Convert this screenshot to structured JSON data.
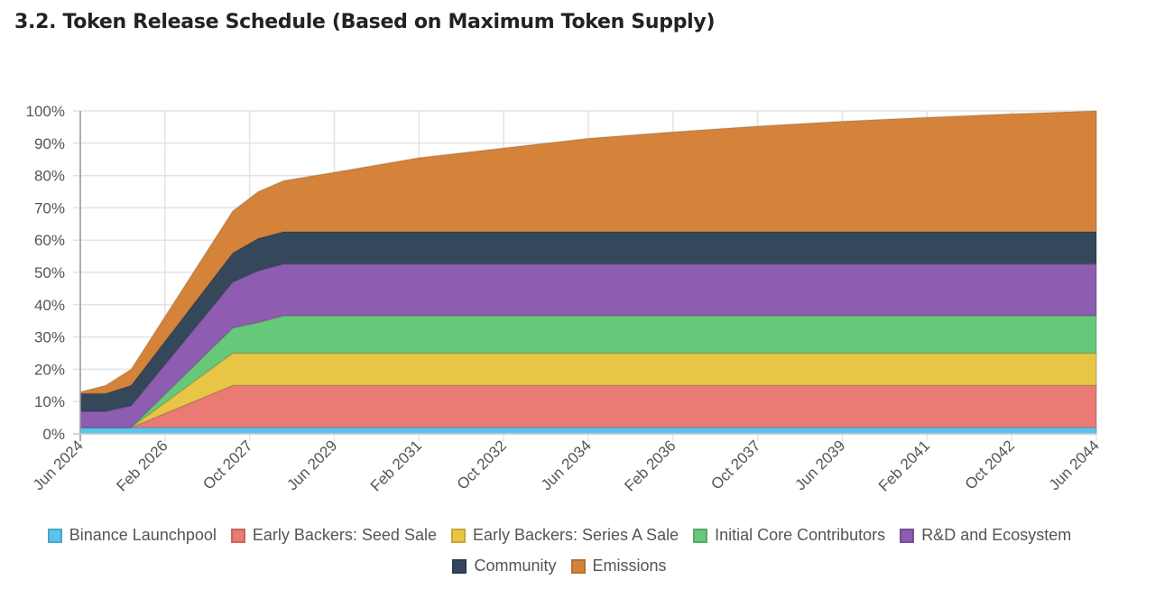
{
  "title": "3.2. Token Release Schedule (Based on Maximum Token Supply)",
  "chart_data": {
    "type": "area",
    "stacked": true,
    "ylim": [
      0,
      100
    ],
    "yticks": [
      "0%",
      "10%",
      "20%",
      "30%",
      "40%",
      "50%",
      "60%",
      "70%",
      "80%",
      "90%",
      "100%"
    ],
    "xticks": [
      "Jun 2024",
      "Feb 2026",
      "Oct 2027",
      "Jun 2029",
      "Feb 2031",
      "Oct 2032",
      "Jun 2034",
      "Feb 2036",
      "Oct 2037",
      "Jun 2039",
      "Feb 2041",
      "Oct 2042",
      "Jun 2044"
    ],
    "grid": true,
    "legend": "bottom",
    "x": [
      "2024-06",
      "2024-12",
      "2025-06",
      "2027-06",
      "2027-12",
      "2028-06",
      "2029-06",
      "2031-02",
      "2032-10",
      "2034-06",
      "2036-02",
      "2037-10",
      "2039-06",
      "2041-02",
      "2042-10",
      "2044-06"
    ],
    "series": [
      {
        "name": "Binance Launchpool",
        "color": "#5bc4ec",
        "values": [
          2,
          2,
          2,
          2,
          2,
          2,
          2,
          2,
          2,
          2,
          2,
          2,
          2,
          2,
          2,
          2
        ]
      },
      {
        "name": "Early Backers: Seed Sale",
        "color": "#ea7a74",
        "values": [
          0,
          0,
          0,
          13,
          13,
          13,
          13,
          13,
          13,
          13,
          13,
          13,
          13,
          13,
          13,
          13
        ]
      },
      {
        "name": "Early Backers: Series A Sale",
        "color": "#e9c545",
        "values": [
          0,
          0,
          0,
          10,
          10,
          10,
          10,
          10,
          10,
          10,
          10,
          10,
          10,
          10,
          10,
          10
        ]
      },
      {
        "name": "Initial Core Contributors",
        "color": "#66c97a",
        "values": [
          0,
          0,
          0,
          7.8,
          9.5,
          11.6,
          11.6,
          11.6,
          11.6,
          11.6,
          11.6,
          11.6,
          11.6,
          11.6,
          11.6,
          11.6
        ]
      },
      {
        "name": "R&D and Ecosystem",
        "color": "#8e5cb0",
        "values": [
          5,
          5,
          6.7,
          14.2,
          16,
          16,
          16,
          16,
          16,
          16,
          16,
          16,
          16,
          16,
          16,
          16
        ]
      },
      {
        "name": "Community",
        "color": "#35475a",
        "values": [
          5.5,
          5.5,
          6.3,
          9,
          10,
          10,
          10,
          10,
          10,
          10,
          10,
          10,
          10,
          10,
          10,
          10
        ]
      },
      {
        "name": "Emissions",
        "color": "#d5833a",
        "values": [
          0.5,
          2.5,
          5,
          13,
          14.5,
          15.8,
          18.4,
          22.9,
          25.9,
          28.9,
          30.9,
          32.7,
          34.2,
          35.4,
          36.5,
          37.4
        ]
      }
    ]
  }
}
